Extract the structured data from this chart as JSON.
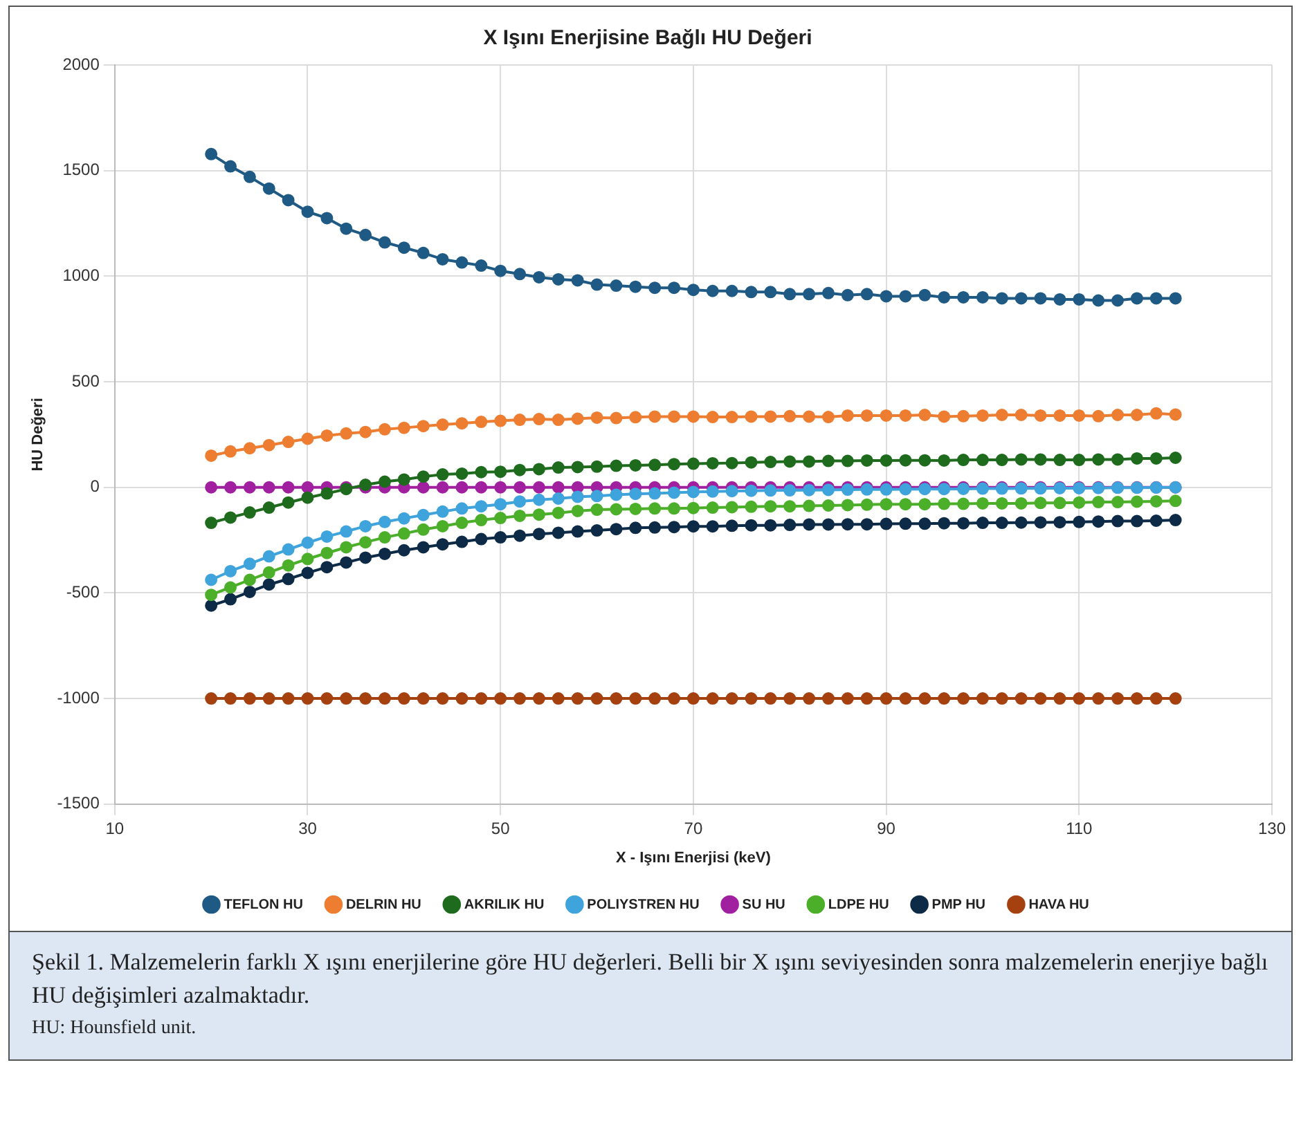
{
  "chart_data": {
    "type": "line",
    "title": "X Işını Enerjisine Bağlı HU Değeri",
    "xlabel": "X - Işını Enerjisi (keV)",
    "ylabel": "HU Değeri",
    "x": [
      20,
      22,
      24,
      26,
      28,
      30,
      32,
      34,
      36,
      38,
      40,
      42,
      44,
      46,
      48,
      50,
      52,
      54,
      56,
      58,
      60,
      62,
      64,
      66,
      68,
      70,
      72,
      74,
      76,
      78,
      80,
      82,
      84,
      86,
      88,
      90,
      92,
      94,
      96,
      98,
      100,
      102,
      104,
      106,
      108,
      110,
      112,
      114,
      116,
      118,
      120
    ],
    "series": [
      {
        "name": "TEFLON HU",
        "color": "#1f5a85",
        "values": [
          1578,
          1520,
          1470,
          1415,
          1360,
          1305,
          1275,
          1225,
          1195,
          1160,
          1135,
          1110,
          1080,
          1065,
          1050,
          1025,
          1010,
          995,
          985,
          980,
          960,
          955,
          950,
          945,
          945,
          935,
          930,
          930,
          925,
          925,
          915,
          915,
          920,
          910,
          915,
          905,
          905,
          910,
          900,
          900,
          900,
          895,
          895,
          895,
          890,
          890,
          885,
          885,
          895,
          895,
          895
        ]
      },
      {
        "name": "DELRIN HU",
        "color": "#ed7d31",
        "values": [
          150,
          170,
          185,
          200,
          215,
          230,
          245,
          255,
          262,
          275,
          282,
          290,
          297,
          303,
          310,
          315,
          320,
          323,
          320,
          325,
          330,
          328,
          332,
          335,
          335,
          335,
          333,
          333,
          335,
          335,
          337,
          335,
          333,
          340,
          340,
          340,
          340,
          343,
          335,
          337,
          340,
          343,
          343,
          340,
          340,
          340,
          337,
          343,
          343,
          350,
          345
        ]
      },
      {
        "name": "AKRILIK HU",
        "color": "#1e6b1e",
        "values": [
          -168,
          -143,
          -119,
          -96,
          -72,
          -49,
          -29,
          -8,
          12,
          27,
          37,
          51,
          61,
          65,
          72,
          74,
          82,
          86,
          94,
          96,
          98,
          102,
          104,
          106,
          110,
          112,
          114,
          115,
          118,
          120,
          122,
          122,
          125,
          125,
          127,
          127,
          128,
          128,
          127,
          130,
          130,
          130,
          132,
          132,
          130,
          130,
          132,
          132,
          137,
          137,
          140
        ]
      },
      {
        "name": "POLIYSTREN HU",
        "color": "#3fa3dc",
        "values": [
          -438,
          -397,
          -362,
          -327,
          -294,
          -262,
          -233,
          -209,
          -184,
          -164,
          -147,
          -131,
          -115,
          -100,
          -90,
          -80,
          -67,
          -59,
          -53,
          -45,
          -41,
          -35,
          -31,
          -29,
          -25,
          -22,
          -20,
          -18,
          -16,
          -15,
          -14,
          -13,
          -12,
          -11,
          -10,
          -10,
          -9,
          -8,
          -8,
          -7,
          -6,
          -6,
          -5,
          -5,
          -4,
          -4,
          -3,
          -2,
          -2,
          -1,
          0
        ]
      },
      {
        "name": "SU HU",
        "color": "#a020a0",
        "values": [
          0,
          0,
          0,
          0,
          0,
          0,
          0,
          0,
          0,
          0,
          0,
          0,
          0,
          0,
          0,
          0,
          0,
          0,
          0,
          0,
          0,
          0,
          0,
          0,
          0,
          0,
          0,
          0,
          0,
          0,
          0,
          0,
          0,
          0,
          0,
          0,
          0,
          0,
          0,
          0,
          0,
          0,
          0,
          0,
          0,
          0,
          0,
          0,
          0,
          0,
          0
        ]
      },
      {
        "name": "LDPE HU",
        "color": "#4caf2a",
        "values": [
          -509,
          -474,
          -438,
          -403,
          -370,
          -339,
          -311,
          -284,
          -260,
          -237,
          -219,
          -200,
          -184,
          -168,
          -155,
          -145,
          -135,
          -129,
          -121,
          -112,
          -106,
          -104,
          -102,
          -100,
          -100,
          -98,
          -96,
          -94,
          -92,
          -90,
          -90,
          -88,
          -86,
          -84,
          -82,
          -80,
          -80,
          -80,
          -78,
          -78,
          -76,
          -76,
          -76,
          -74,
          -74,
          -72,
          -70,
          -70,
          -68,
          -66,
          -64
        ]
      },
      {
        "name": "PMP HU",
        "color": "#0d2a47",
        "values": [
          -560,
          -530,
          -495,
          -460,
          -434,
          -405,
          -378,
          -356,
          -333,
          -315,
          -298,
          -284,
          -270,
          -258,
          -245,
          -237,
          -229,
          -221,
          -215,
          -209,
          -204,
          -198,
          -192,
          -190,
          -188,
          -185,
          -185,
          -182,
          -180,
          -180,
          -178,
          -176,
          -176,
          -175,
          -175,
          -173,
          -172,
          -172,
          -170,
          -170,
          -168,
          -168,
          -167,
          -166,
          -165,
          -164,
          -162,
          -160,
          -160,
          -158,
          -155
        ]
      },
      {
        "name": "HAVA HU",
        "color": "#a5400f",
        "values": [
          -1000,
          -1000,
          -1000,
          -1000,
          -1000,
          -1000,
          -1000,
          -1000,
          -1000,
          -1000,
          -1000,
          -1000,
          -1000,
          -1000,
          -1000,
          -1000,
          -1000,
          -1000,
          -1000,
          -1000,
          -1000,
          -1000,
          -1000,
          -1000,
          -1000,
          -1000,
          -1000,
          -1000,
          -1000,
          -1000,
          -1000,
          -1000,
          -1000,
          -1000,
          -1000,
          -1000,
          -1000,
          -1000,
          -1000,
          -1000,
          -1000,
          -1000,
          -1000,
          -1000,
          -1000,
          -1000,
          -1000,
          -1000,
          -1000,
          -1000,
          -1000
        ]
      }
    ],
    "xlim": [
      10,
      130
    ],
    "xticks": [
      10,
      30,
      50,
      70,
      90,
      110,
      130
    ],
    "ylim": [
      -1500,
      2000
    ],
    "yticks": [
      -1500,
      -1000,
      -500,
      0,
      500,
      1000,
      1500,
      2000
    ],
    "grid": true,
    "legend": "bottom",
    "marker": "circle",
    "line_style": "solid",
    "annotations": [
      "Şekil 1. Malzemelerin farklı X ışını enerjilerine göre HU değerleri. Belli bir X ışını seviyesinden sonra malzemelerin enerjiye bağlı HU değişimleri azalmaktadır.",
      "HU: Hounsfield unit."
    ]
  }
}
